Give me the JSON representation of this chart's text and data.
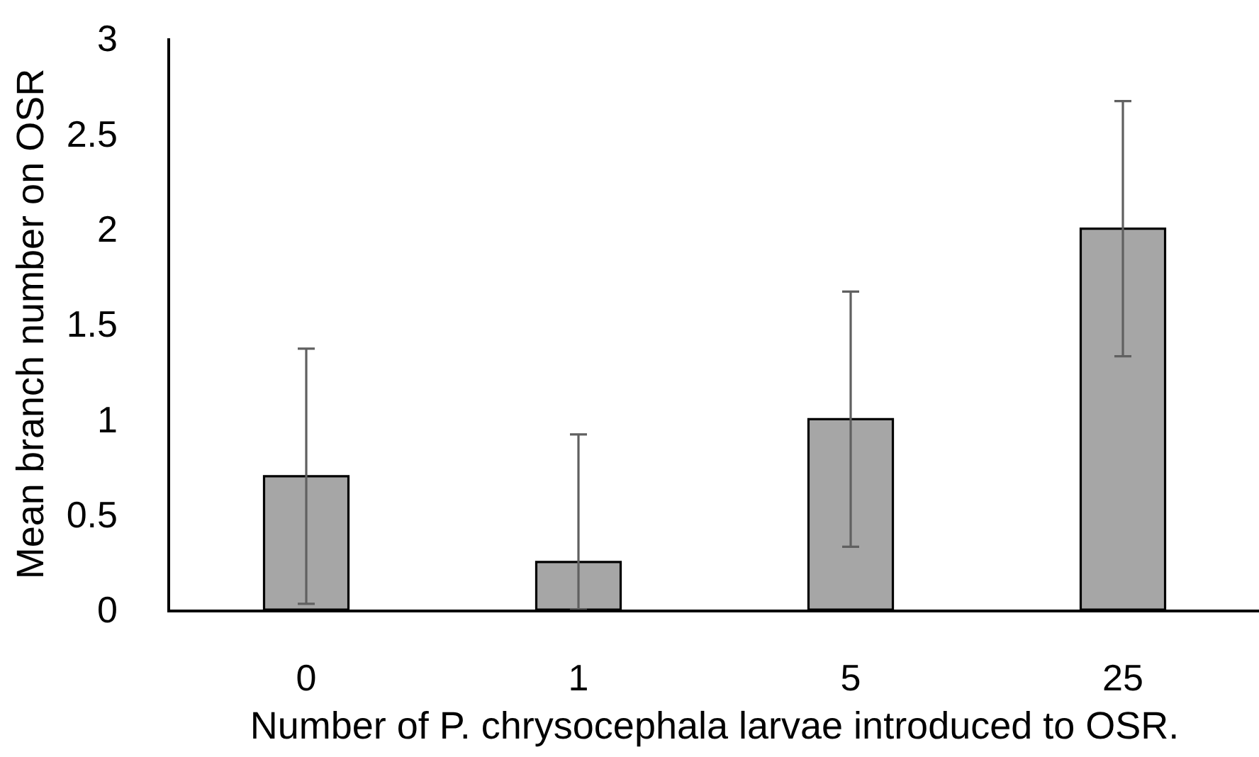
{
  "chart_data": {
    "type": "bar",
    "xlabel": "Number of P. chrysocephala larvae introduced to OSR.",
    "ylabel": "Mean branch number on OSR",
    "categories": [
      "0",
      "1",
      "5",
      "25"
    ],
    "values": [
      0.7,
      0.25,
      1.0,
      2.0
    ],
    "errors": [
      0.67,
      [
        0,
        0.92
      ],
      0.67,
      0.67
    ],
    "color": "#a6a6a6",
    "ylim": [
      0,
      3
    ],
    "yticks": [
      0,
      0.5,
      1,
      1.5,
      2,
      2.5,
      3
    ],
    "grid": false
  }
}
